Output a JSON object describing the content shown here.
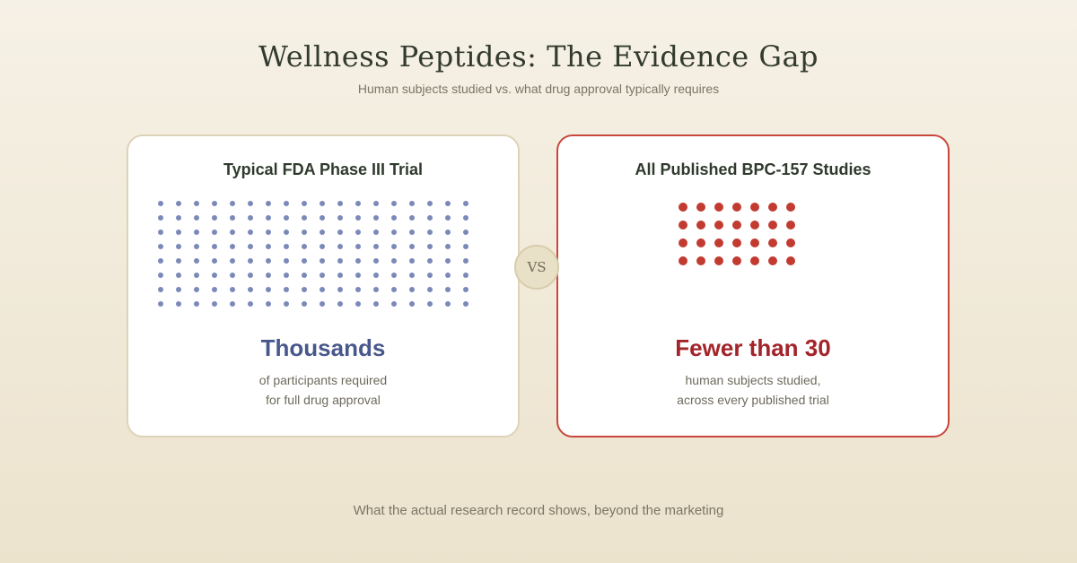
{
  "header": {
    "title": "Wellness Peptides: The Evidence Gap",
    "subtitle": "Human subjects studied vs. what drug approval typically requires"
  },
  "left_card": {
    "heading": "Typical FDA Phase III Trial",
    "dot_rows": 8,
    "dot_cols": 18,
    "dot_color": "#7b89b8",
    "border_color": "#ddd3b8",
    "stat": "Thousands",
    "stat_color": "#48588c",
    "line1": "of participants required",
    "line2": "for full drug approval"
  },
  "vs_label": "VS",
  "right_card": {
    "heading": "All Published BPC-157 Studies",
    "dot_rows": 4,
    "dot_cols": 7,
    "dot_color": "#c23b31",
    "border_color": "#c8473c",
    "stat": "Fewer than 30",
    "stat_color": "#a3242a",
    "line1": "human subjects studied,",
    "line2": "across every published trial"
  },
  "footer": {
    "text": "What the actual research record shows, beyond the marketing"
  }
}
